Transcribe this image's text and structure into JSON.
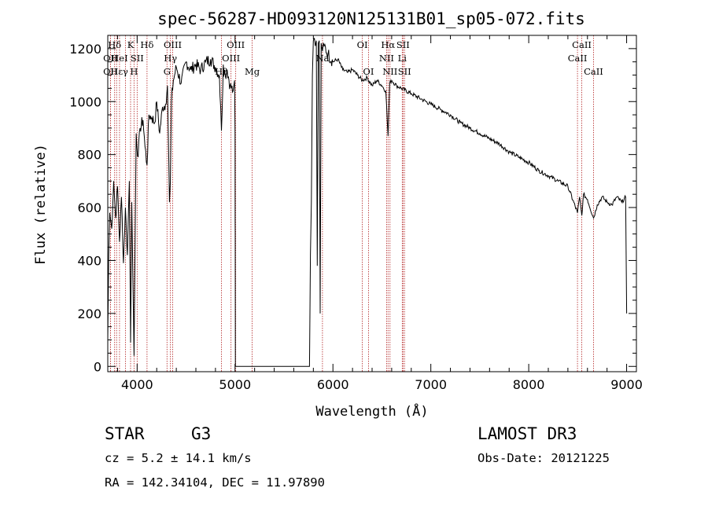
{
  "chart_data": {
    "type": "line",
    "title": "spec-56287-HD093120N125131B01_sp05-072.fits",
    "xlabel": "Wavelength (Å)",
    "ylabel": "Flux (relative)",
    "xlim": [
      3700,
      9100
    ],
    "ylim": [
      -20,
      1250
    ],
    "xticks": [
      4000,
      5000,
      6000,
      7000,
      8000,
      9000
    ],
    "yticks": [
      0,
      200,
      400,
      600,
      800,
      1000,
      1200
    ],
    "series": [
      {
        "name": "flux",
        "x": [
          3700,
          3710,
          3720,
          3740,
          3760,
          3780,
          3800,
          3820,
          3840,
          3860,
          3880,
          3900,
          3920,
          3933,
          3945,
          3968,
          3990,
          4010,
          4030,
          4060,
          4080,
          4101,
          4120,
          4150,
          4180,
          4200,
          4230,
          4260,
          4290,
          4310,
          4330,
          4340,
          4350,
          4370,
          4400,
          4450,
          4500,
          4550,
          4600,
          4650,
          4700,
          4750,
          4800,
          4840,
          4861,
          4880,
          4900,
          4920,
          4950,
          4980,
          4995,
          5000,
          5001,
          5002,
          5003,
          5004,
          5005,
          5006,
          5007,
          5760,
          5762,
          5770,
          5780,
          5790,
          5800,
          5810,
          5820,
          5830,
          5840,
          5850,
          5860,
          5870,
          5880,
          5893,
          5910,
          5950,
          6000,
          6050,
          6100,
          6150,
          6200,
          6250,
          6300,
          6350,
          6400,
          6450,
          6500,
          6540,
          6563,
          6580,
          6600,
          6650,
          6700,
          6800,
          6900,
          7000,
          7100,
          7200,
          7300,
          7400,
          7500,
          7600,
          7700,
          7800,
          7900,
          8000,
          8100,
          8200,
          8300,
          8400,
          8498,
          8520,
          8542,
          8560,
          8600,
          8662,
          8700,
          8750,
          8800,
          8850,
          8900,
          8950,
          8990,
          9000
        ],
        "y": [
          100,
          420,
          580,
          520,
          700,
          560,
          680,
          470,
          640,
          390,
          600,
          420,
          700,
          90,
          620,
          40,
          880,
          790,
          900,
          930,
          830,
          760,
          950,
          940,
          920,
          1000,
          880,
          980,
          990,
          1060,
          620,
          700,
          1000,
          1080,
          1130,
          1070,
          1150,
          1120,
          1140,
          1120,
          1150,
          1160,
          1130,
          1100,
          890,
          1140,
          1100,
          1120,
          1060,
          1040,
          1080,
          880,
          550,
          500,
          0,
          0,
          0,
          0,
          0,
          0,
          60,
          420,
          620,
          1100,
          1230,
          1240,
          1210,
          1230,
          380,
          1220,
          1230,
          200,
          1220,
          1190,
          1210,
          1180,
          1150,
          1160,
          1120,
          1110,
          1120,
          1100,
          1080,
          1090,
          1060,
          1080,
          1060,
          1040,
          870,
          1070,
          1080,
          1060,
          1050,
          1030,
          1010,
          990,
          970,
          950,
          920,
          900,
          880,
          860,
          840,
          810,
          790,
          770,
          740,
          720,
          700,
          680,
          580,
          640,
          570,
          650,
          630,
          560,
          610,
          640,
          620,
          610,
          640,
          620,
          640,
          200
        ]
      }
    ],
    "lines": [
      {
        "label": "Hδ",
        "x": 3770,
        "row": 0
      },
      {
        "label": "OII",
        "x": 3727,
        "row": 1
      },
      {
        "label": "OII",
        "x": 3727,
        "row": 2
      },
      {
        "label": "Hε",
        "x": 3790,
        "row": 2
      },
      {
        "label": "HeI",
        "x": 3820,
        "row": 1
      },
      {
        "label": "K",
        "x": 3933,
        "row": 0
      },
      {
        "label": "γ",
        "x": 3880,
        "row": 2
      },
      {
        "label": "SII",
        "x": 4000,
        "row": 1
      },
      {
        "label": "H",
        "x": 3968,
        "row": 2
      },
      {
        "label": "Hδ",
        "x": 4101,
        "row": 0
      },
      {
        "label": "OIII",
        "x": 4363,
        "row": 0
      },
      {
        "label": "Hγ",
        "x": 4340,
        "row": 1
      },
      {
        "label": "G",
        "x": 4305,
        "row": 2
      },
      {
        "label": "OIII",
        "x": 5007,
        "row": 0
      },
      {
        "label": "OIII",
        "x": 4959,
        "row": 1
      },
      {
        "label": "Hβ",
        "x": 4861,
        "row": 2
      },
      {
        "label": "Mg",
        "x": 5175,
        "row": 2
      },
      {
        "label": "Na",
        "x": 5893,
        "row": 1
      },
      {
        "label": "OI",
        "x": 6300,
        "row": 0
      },
      {
        "label": "OI",
        "x": 6363,
        "row": 2
      },
      {
        "label": "Hα",
        "x": 6563,
        "row": 0
      },
      {
        "label": "SII",
        "x": 6716,
        "row": 0
      },
      {
        "label": "NII",
        "x": 6548,
        "row": 1
      },
      {
        "label": "Li",
        "x": 6708,
        "row": 1
      },
      {
        "label": "NII",
        "x": 6583,
        "row": 2
      },
      {
        "label": "SII",
        "x": 6731,
        "row": 2
      },
      {
        "label": "CaII",
        "x": 8542,
        "row": 0
      },
      {
        "label": "CaII",
        "x": 8498,
        "row": 1
      },
      {
        "label": "CaII",
        "x": 8662,
        "row": 2
      }
    ],
    "line_color": "#b22222"
  },
  "info": {
    "object_class": "STAR",
    "subclass": "G3",
    "survey": "LAMOST DR3",
    "cz": "cz = 5.2 ± 14.1 km/s",
    "obs_date": "Obs-Date: 20121225",
    "coords": "RA = 142.34104, DEC =  11.97890"
  }
}
